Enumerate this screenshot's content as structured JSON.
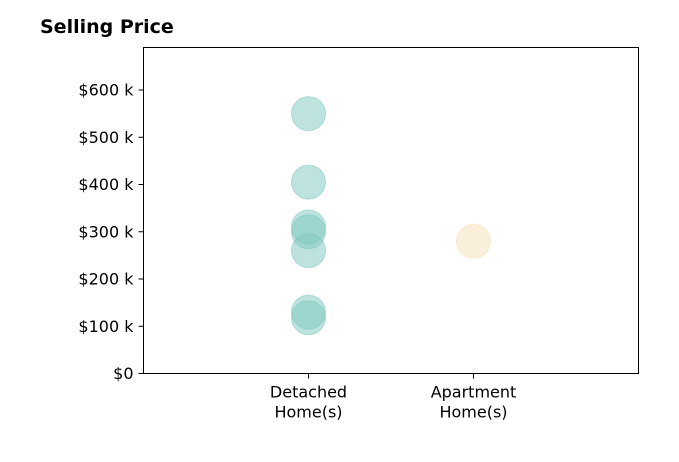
{
  "chart_data": {
    "type": "scatter",
    "title": "Selling Price",
    "xlabel": "",
    "ylabel": "",
    "categories": [
      "Detached\nHome(s)",
      "Apartment\nHome(s)"
    ],
    "x_range_index": [
      -1,
      2
    ],
    "ylim": [
      0,
      690
    ],
    "y_ticks": [
      0,
      100,
      200,
      300,
      400,
      500,
      600
    ],
    "y_tick_labels": [
      "$0",
      "$100 k",
      "$200 k",
      "$300 k",
      "$400 k",
      "$500 k",
      "$600 k"
    ],
    "grid": false,
    "legend": "none",
    "series": [
      {
        "category": "Detached\nHome(s)",
        "color": "#7ec8be",
        "values": [
          550,
          405,
          310,
          300,
          260,
          130,
          118
        ]
      },
      {
        "category": "Apartment\nHome(s)",
        "color": "#f5dfb5",
        "values": [
          280
        ]
      }
    ]
  }
}
